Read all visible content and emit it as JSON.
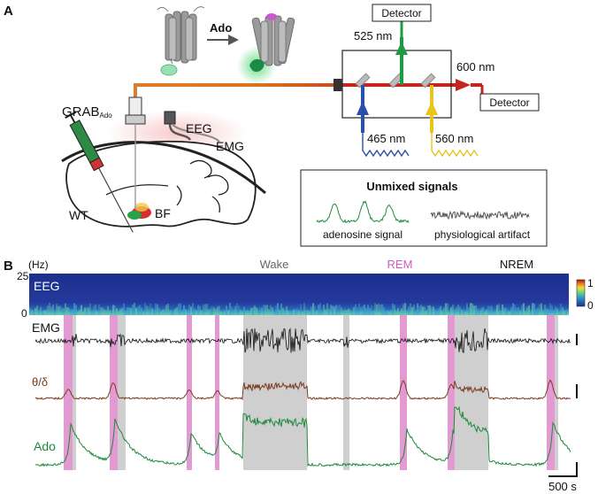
{
  "panel_a": {
    "label": "A",
    "ado_label": "Ado",
    "detector_top": "Detector",
    "detector_right": "Detector",
    "nm_525": "525 nm",
    "nm_600": "600 nm",
    "nm_465": "465 nm",
    "nm_560": "560 nm",
    "grab_main": "GRAB",
    "grab_sub": "Ado",
    "eeg": "EEG",
    "emg": "EMG",
    "wt": "WT",
    "bf": "BF",
    "unmixed_title": "Unmixed signals",
    "adenosine_signal": "adenosine signal",
    "physiological_artifact": "physiological artifact"
  },
  "panel_b": {
    "label": "B",
    "hz_label": "(Hz)",
    "freq_max": "25",
    "freq_min": "0",
    "state_wake": "Wake",
    "state_rem": "REM",
    "state_nrem": "NREM",
    "eeg_label": "EEG",
    "emg_label": "EMG",
    "theta_delta_label": "θ/δ",
    "ado_label": "Ado",
    "colorbar_max": "1",
    "colorbar_min": "0",
    "scale_bar_label": "500 s"
  },
  "colors": {
    "green": "#1f8a3a",
    "orange": "#d97a22",
    "red": "#d41f2b",
    "blue": "#2a4fa8",
    "yellow": "#e8c51a",
    "rem_pink": "#e39ad2",
    "wake_gray": "#cfcfcf",
    "theta_brown": "#7a3b1e"
  }
}
